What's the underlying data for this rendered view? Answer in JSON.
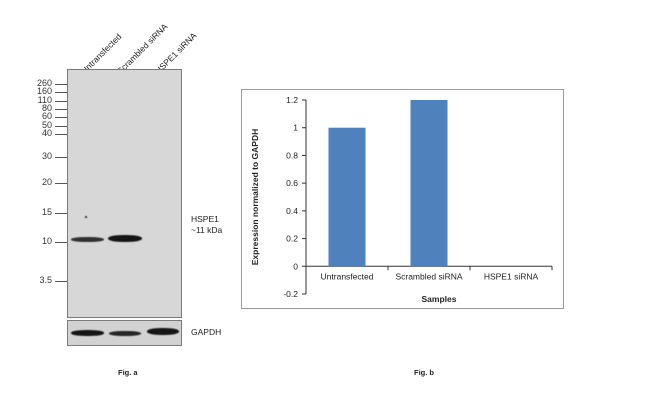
{
  "blot": {
    "lanes": [
      "Untransfected",
      "Scrambled siRNA",
      "HSPE1 siRNA"
    ],
    "mw_markers": [
      "260",
      "160",
      "110",
      "80",
      "60",
      "50",
      "40",
      "30",
      "20",
      "15",
      "10",
      "3.5"
    ],
    "band_name": "HSPE1",
    "band_size": "~11 kDa",
    "loading_control": "GAPDH",
    "caption": "Fig. a"
  },
  "caption_b": "Fig. b",
  "chart_data": {
    "type": "bar",
    "categories": [
      "Untransfected",
      "Scrambled siRNA",
      "HSPE1 siRNA"
    ],
    "values": [
      1.0,
      1.2,
      0.0
    ],
    "xlabel": "Samples",
    "ylabel": "Expression normalized to GAPDH",
    "ylim": [
      -0.2,
      1.2
    ],
    "yticks": [
      "-0.2",
      "0",
      "0.2",
      "0.4",
      "0.6",
      "0.8",
      "1",
      "1.2"
    ],
    "bar_color": "#4f81bd",
    "grid": false,
    "legend": "none"
  }
}
